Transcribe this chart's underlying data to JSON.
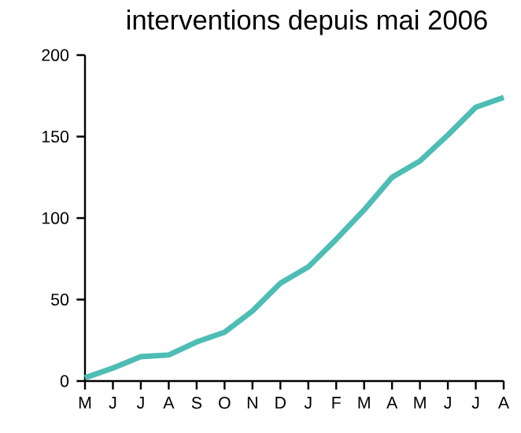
{
  "chart_data": {
    "type": "line",
    "title": "interventions depuis mai 2006",
    "categories": [
      "M",
      "J",
      "J",
      "A",
      "S",
      "O",
      "N",
      "D",
      "J",
      "F",
      "M",
      "A",
      "M",
      "J",
      "J",
      "A"
    ],
    "series": [
      {
        "color": "#4dbdb5",
        "values": [
          2,
          8,
          15,
          16,
          24,
          30,
          43,
          60,
          70,
          87,
          105,
          125,
          135,
          151,
          168,
          174
        ]
      }
    ],
    "ylim": [
      0,
      200
    ],
    "yticks": [
      0,
      50,
      100,
      150,
      200
    ],
    "grid": false,
    "marker": "none",
    "line_style": "solid"
  }
}
